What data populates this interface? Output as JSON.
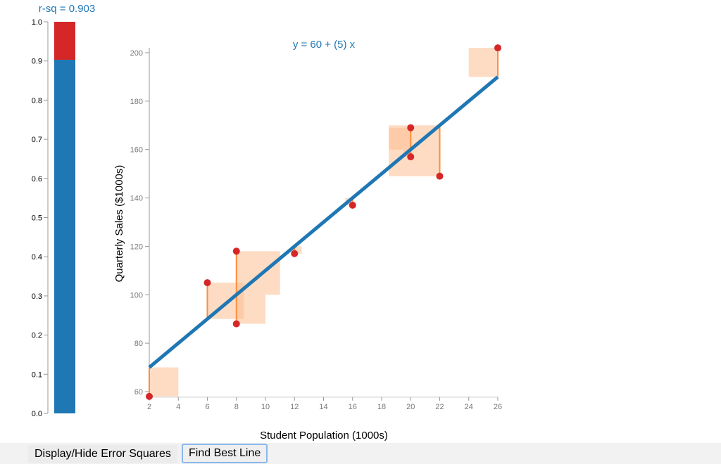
{
  "rsq_label": "r-sq = 0.903",
  "buttons": {
    "toggle_squares": "Display/Hide Error Squares",
    "best_line": "Find Best Line"
  },
  "colors": {
    "line": "#1f77b4",
    "point": "#d62728",
    "residual": "#fd8d3c",
    "square": "#fdbe91",
    "unexplained": "#d62728",
    "explained": "#1f77b4"
  },
  "chart_data": [
    {
      "type": "bar",
      "title": "r-sq = 0.903",
      "values": [
        0.903
      ],
      "ylim": [
        0,
        1
      ],
      "yticks": [
        "0.0",
        "0.1",
        "0.2",
        "0.3",
        "0.4",
        "0.5",
        "0.6",
        "0.7",
        "0.8",
        "0.9",
        "1.0"
      ]
    },
    {
      "type": "scatter",
      "title": "y = 60 + (5) x",
      "xlabel": "Student Population (1000s)",
      "ylabel": "Quarterly Sales ($1000s)",
      "xlim": [
        2,
        26
      ],
      "ylim": [
        58,
        202
      ],
      "xticks": [
        "2",
        "4",
        "6",
        "8",
        "10",
        "12",
        "14",
        "16",
        "18",
        "20",
        "22",
        "24",
        "26"
      ],
      "yticks": [
        "60",
        "80",
        "100",
        "120",
        "140",
        "160",
        "180",
        "200"
      ],
      "points": [
        [
          2,
          58
        ],
        [
          6,
          105
        ],
        [
          8,
          88
        ],
        [
          8,
          118
        ],
        [
          12,
          117
        ],
        [
          16,
          137
        ],
        [
          20,
          157
        ],
        [
          20,
          169
        ],
        [
          22,
          149
        ],
        [
          26,
          202
        ]
      ],
      "line": {
        "intercept": 60,
        "slope": 5
      },
      "grid": false
    }
  ]
}
